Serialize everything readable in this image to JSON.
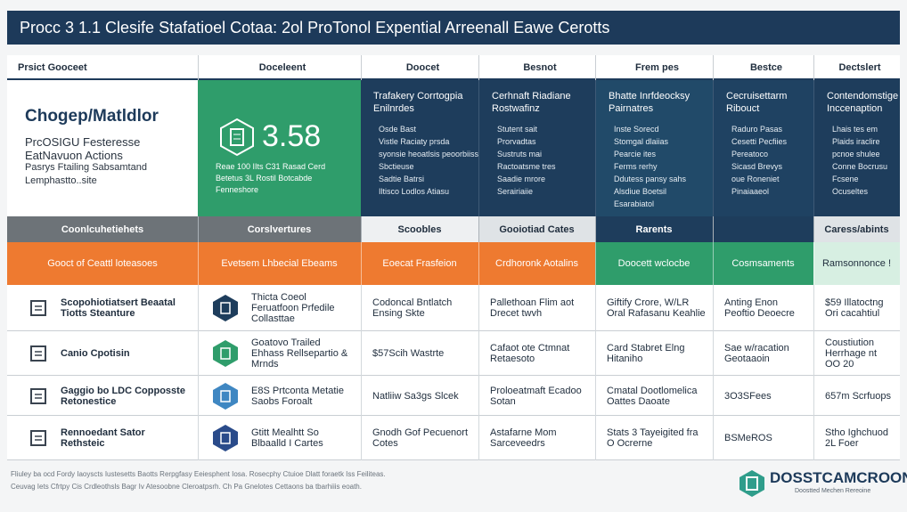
{
  "title": "Procc 3 1.1 Clesife Stafatioel Cotaa: 2ol ProTonol Expential Arreenall Eawe Cerotts",
  "columns": [
    "Prsict Gooceet",
    "Doceleent",
    "Doocet",
    "Besnot",
    "Frem pes",
    "Bestce",
    "Dectslert"
  ],
  "highlight": {
    "title": "Chogep/Matldlor",
    "lines": [
      "PrcOSIGU Festeresse",
      "EatNavuon Actions",
      "Pasrys Ftailing Sabsamtand",
      "Lemphastto..site"
    ]
  },
  "metric": {
    "value": "3.58",
    "lines": [
      "Reae 100 IIts C31 Rasad Cerd",
      "Betetus 3L Rostil Botcabde",
      "Fenneshore"
    ]
  },
  "panels": [
    {
      "title": "Trafakery Corrtogpia",
      "subtitle": "Enilnrdes",
      "lines": [
        "Osde Bast",
        "Vistle Raciaty prsda",
        "syonsie heoatlsis peoorbiiss",
        "Sbctieuse",
        "Sadtie Batrsi",
        "Iltisco Lodlos Atiasu"
      ]
    },
    {
      "title": "Cerhnaft Riadiane",
      "subtitle": "Rostwafinz",
      "lines": [
        "Stutent sait",
        "Prorvadtas",
        "Sustruts mai",
        "Ractoatsme tres",
        "Saadie mrore",
        "Serairiaiie"
      ]
    },
    {
      "title": "Bhatte Inrfdeocksy",
      "subtitle": "Pairnatres",
      "lines": [
        "Inste Sorecd",
        "Stomgal dlaiias",
        "Pearcie ites",
        "Ferms rerhy",
        "Ddutess pansy sahs",
        "Alsdiue Boetsil",
        "Esarabiatol"
      ]
    },
    {
      "title": "Cecruisettarm",
      "subtitle": "Ribouct",
      "lines": [
        "Raduro Pasas",
        "Cesetti Pecfiies",
        "Pereatoco",
        "Sicasd Brevys",
        "oue Roneniet",
        "Pinaiaaeol"
      ]
    },
    {
      "title": "Contendomstige",
      "subtitle": "Inccenaption",
      "lines": [
        "Lhais tes em",
        "Plaids iraclire",
        "pcnoe shulee",
        "Conne Bocrusu",
        "Fcsene",
        "Ocuseltes"
      ]
    }
  ],
  "section_row": [
    "Coonlcuhetiehets",
    "Corslvertures",
    "Scoobles",
    "Gooiotiad Cates",
    "Rarents",
    "Caress/abints"
  ],
  "orange_row": [
    "Gooct of Ceattl loteasoes",
    "Evetsem Lhbecial Ebeams",
    "Eoecat Frasfeion",
    "Crdhoronk Aotalins",
    "Doocett wclocbe",
    "Cosmsaments",
    "Ramsonnonce !"
  ],
  "rows": [
    {
      "label": "Scopohiotiatsert Beaatal Tiotts Steanture",
      "cells": [
        "Thicta Coeol Feruatfoon Prfedile Collasttae",
        "Codoncal Bntlatch Ensing Skte",
        "Pallethoan Flim aot Drecet twvh",
        "Giftify Crore, W/LR Oral Rafasanu Keahlie",
        "Anting Enon Peoftio Deoecre",
        "$59 Illatoctng Ori cacahtiul"
      ]
    },
    {
      "label": "Canio Cpotisin",
      "cells": [
        "Goatovo Trailed Ehhass Rellsepartio & Mrnds",
        "$57Scih Wastrte",
        "Cafaot ote Ctmnat Retaesoto",
        "Card Stabret Elng Hitaniho",
        "Sae w/racation Geotaaoin",
        "Coustiution Herrhage nt OO 20"
      ]
    },
    {
      "label": "Gaggio bo LDC Copposste Retonestice",
      "cells": [
        "E8S Prtconta Metatie Saobs Foroalt",
        "Natliiw Sa3gs Slcek",
        "Proloeatmaft Ecadoo Sotan",
        "Cmatal Dootlomelica Oattes Daoate",
        "3O3SFees",
        "657m Scrfuops"
      ]
    },
    {
      "label": "Rennoedant Sator Rethsteic",
      "cells": [
        "Gtitt Mealhtt So Blbaalld I Cartes",
        "Gnodh Gof Pecuenort Cotes",
        "Astafarne Mom Sarceveedrs",
        "Stats 3 Tayeigited fra O Ocrerne",
        "BSMeROS",
        "Stho Ighchuod 2L Foer"
      ]
    }
  ],
  "footer": [
    "Fliuley ba ocd Fordy Iaoyscts Iustesetts Baotts Rerpgfasy Eeiesphent Iosa. Rosecphy Ctuioe Dlatt foraetk Iss Feiliteas.",
    "Ceuvag Iets Cfrtpy Cis Crdleothsls Bagr Iv Atesoobne Cleroatpsrh. Ch Pa Gnelotes Cettaons ba tbarhiiis eoath."
  ],
  "logo": {
    "name": "DOSSTCAMCROON",
    "tagline": "Doostted Mechen Rereoine"
  }
}
